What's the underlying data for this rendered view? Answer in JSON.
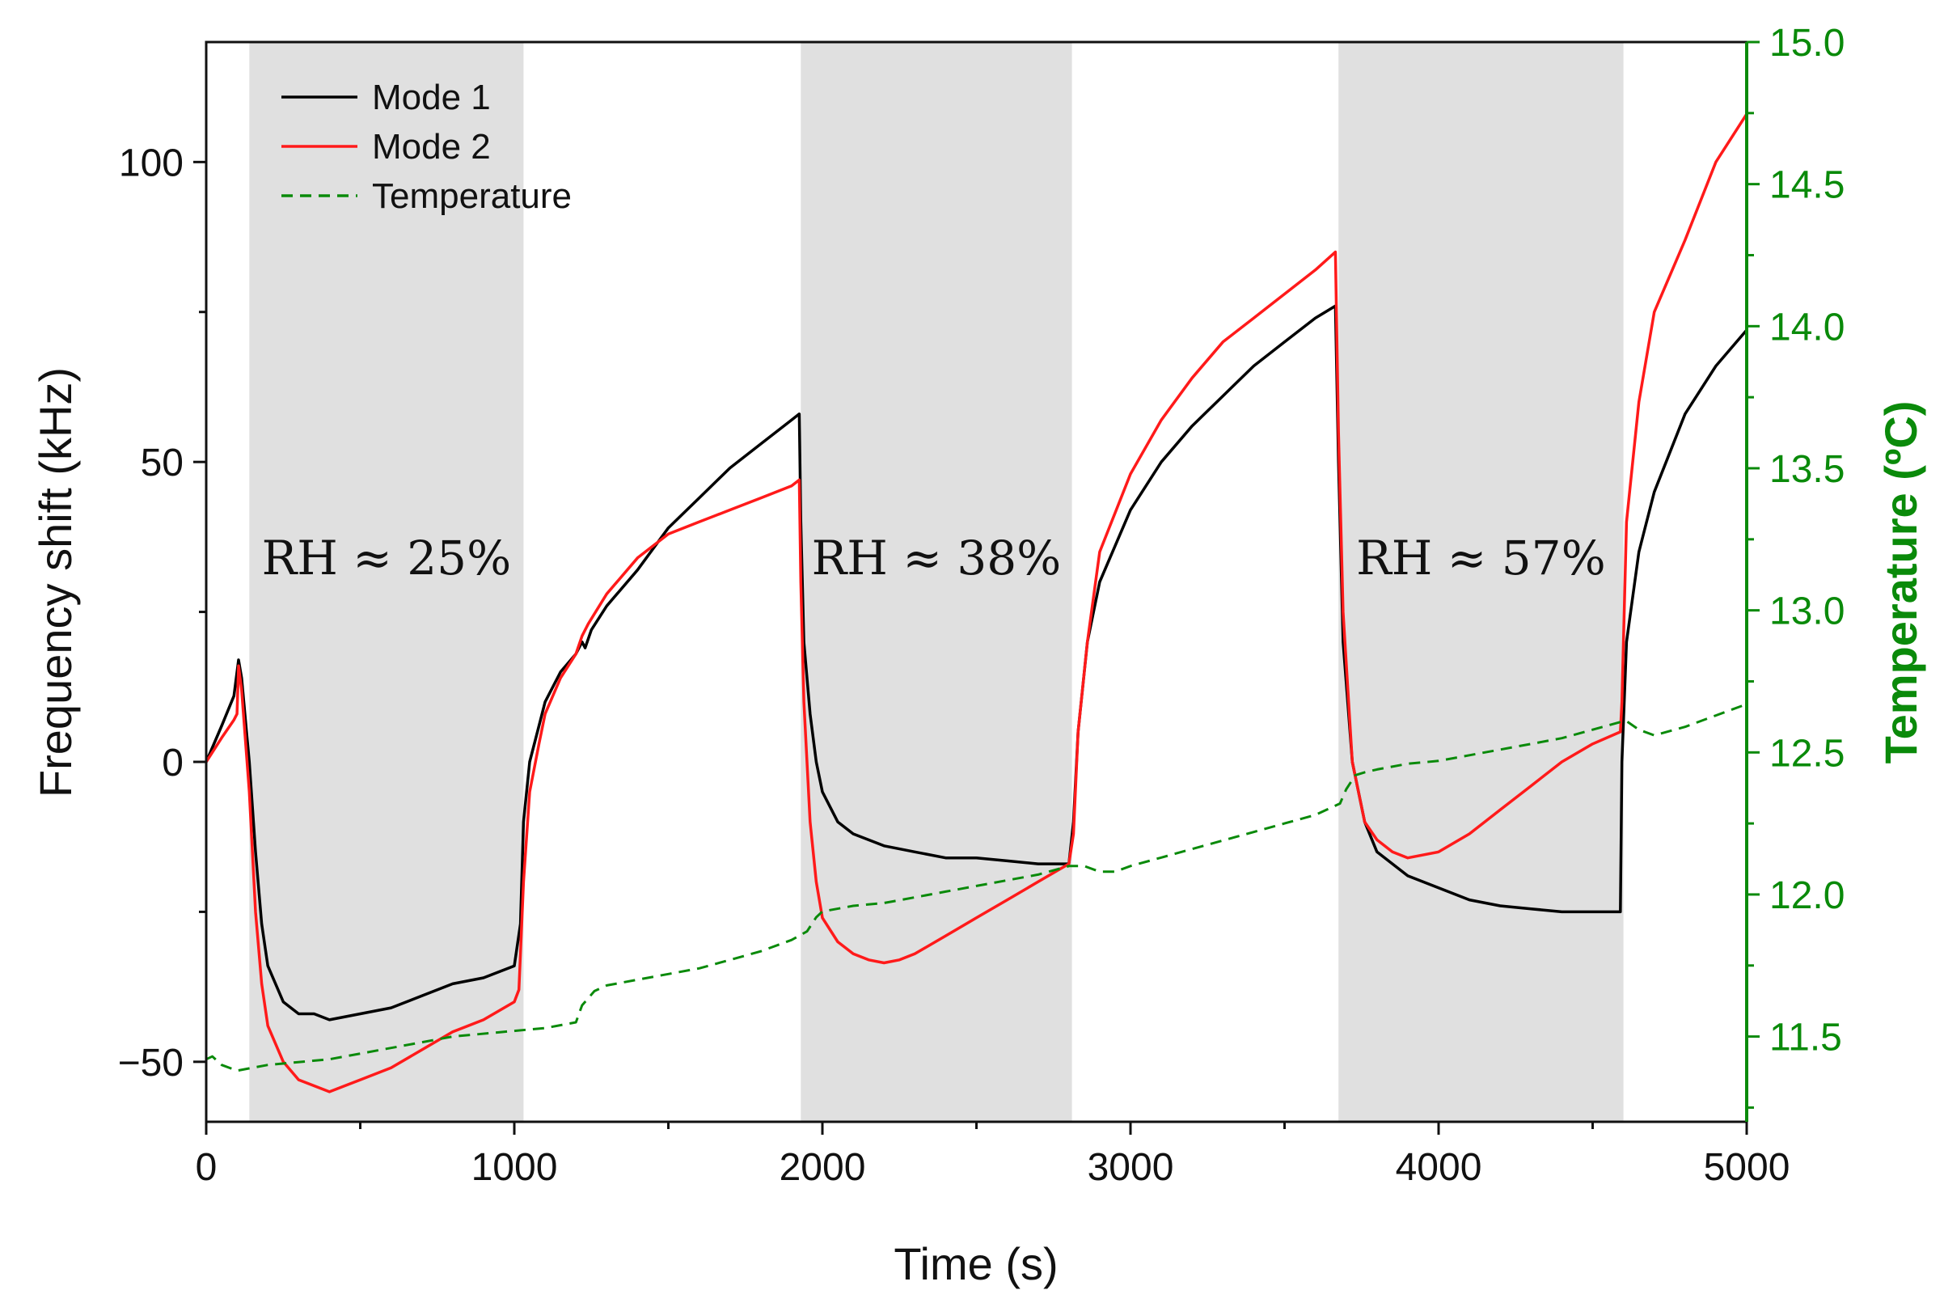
{
  "chart_data": {
    "type": "line",
    "title": "",
    "xlabel": "Time (s)",
    "ylabel": "Frequency shift (kHz)",
    "y2label": "Temperature (ºC)",
    "xlim": [
      0,
      5000
    ],
    "ylim": [
      -60,
      120
    ],
    "y2lim": [
      11.2,
      15.0
    ],
    "xticks": [
      0,
      1000,
      2000,
      3000,
      4000,
      5000
    ],
    "xtick_labels": [
      "0",
      "1000",
      "2000",
      "3000",
      "4000",
      "5000"
    ],
    "yticks": [
      -50,
      0,
      50,
      100
    ],
    "ytick_labels": [
      "−50",
      "0",
      "50",
      "100"
    ],
    "y2ticks": [
      11.5,
      12.0,
      12.5,
      13.0,
      13.5,
      14.0,
      14.5,
      15.0
    ],
    "y2tick_labels": [
      "11.5",
      "12.0",
      "12.5",
      "13.0",
      "13.5",
      "14.0",
      "14.5",
      "15.0"
    ],
    "shaded_regions": [
      {
        "x0": 140,
        "x1": 1030,
        "label": "RH ≈ 25%"
      },
      {
        "x0": 1930,
        "x1": 2810,
        "label": "RH ≈ 38%"
      },
      {
        "x0": 3675,
        "x1": 4600,
        "label": "RH ≈ 57%"
      }
    ],
    "legend": {
      "position": "top-left",
      "entries": [
        {
          "name": "Mode 1",
          "color": "#000000",
          "style": "solid"
        },
        {
          "name": "Mode 2",
          "color": "#ff1a1a",
          "style": "solid"
        },
        {
          "name": "Temperature",
          "color": "#0a8a0a",
          "style": "dashed"
        }
      ]
    },
    "series": [
      {
        "name": "Mode 1",
        "axis": "left",
        "color": "#000000",
        "x": [
          0,
          50,
          90,
          105,
          115,
          140,
          160,
          180,
          200,
          250,
          300,
          350,
          400,
          500,
          600,
          700,
          800,
          900,
          1000,
          1020,
          1030,
          1050,
          1080,
          1100,
          1150,
          1200,
          1220,
          1230,
          1250,
          1300,
          1400,
          1500,
          1600,
          1700,
          1800,
          1900,
          1925,
          1930,
          1940,
          1960,
          1980,
          2000,
          2050,
          2100,
          2200,
          2300,
          2400,
          2500,
          2600,
          2700,
          2800,
          2815,
          2830,
          2860,
          2900,
          3000,
          3100,
          3200,
          3300,
          3400,
          3500,
          3600,
          3665,
          3675,
          3690,
          3720,
          3760,
          3800,
          3900,
          4000,
          4100,
          4200,
          4300,
          4400,
          4500,
          4590,
          4595,
          4610,
          4650,
          4700,
          4800,
          4900,
          5000
        ],
        "y": [
          0,
          6,
          11,
          17,
          14,
          0,
          -15,
          -27,
          -34,
          -40,
          -42,
          -42,
          -43,
          -42,
          -41,
          -39,
          -37,
          -36,
          -34,
          -27,
          -10,
          0,
          6,
          10,
          15,
          18,
          20,
          19,
          22,
          26,
          32,
          39,
          44,
          49,
          53,
          57,
          58,
          40,
          20,
          8,
          0,
          -5,
          -10,
          -12,
          -14,
          -15,
          -16,
          -16,
          -16.5,
          -17,
          -17,
          -10,
          5,
          20,
          30,
          42,
          50,
          56,
          61,
          66,
          70,
          74,
          76,
          50,
          20,
          0,
          -10,
          -15,
          -19,
          -21,
          -23,
          -24,
          -24.5,
          -25,
          -25,
          -25,
          0,
          20,
          35,
          45,
          58,
          66,
          72
        ]
      },
      {
        "name": "Mode 2",
        "axis": "left",
        "color": "#ff1a1a",
        "x": [
          0,
          50,
          90,
          100,
          105,
          115,
          140,
          160,
          180,
          200,
          250,
          300,
          350,
          400,
          450,
          500,
          600,
          700,
          800,
          900,
          1000,
          1015,
          1030,
          1050,
          1080,
          1100,
          1150,
          1200,
          1220,
          1240,
          1300,
          1400,
          1500,
          1600,
          1700,
          1800,
          1900,
          1925,
          1930,
          1940,
          1960,
          1980,
          2000,
          2050,
          2100,
          2150,
          2200,
          2250,
          2300,
          2400,
          2500,
          2600,
          2700,
          2800,
          2815,
          2830,
          2860,
          2900,
          3000,
          3100,
          3200,
          3300,
          3400,
          3500,
          3600,
          3665,
          3675,
          3690,
          3720,
          3760,
          3800,
          3850,
          3900,
          4000,
          4100,
          4200,
          4300,
          4400,
          4500,
          4590,
          4595,
          4610,
          4650,
          4700,
          4800,
          4900,
          5000
        ],
        "y": [
          0,
          4,
          7,
          8,
          16,
          12,
          -5,
          -25,
          -37,
          -44,
          -50,
          -53,
          -54,
          -55,
          -54,
          -53,
          -51,
          -48,
          -45,
          -43,
          -40,
          -38,
          -20,
          -5,
          3,
          8,
          14,
          18,
          21,
          23,
          28,
          34,
          38,
          40,
          42,
          44,
          46,
          47,
          30,
          10,
          -10,
          -20,
          -26,
          -30,
          -32,
          -33,
          -33.5,
          -33,
          -32,
          -29,
          -26,
          -23,
          -20,
          -17,
          -12,
          5,
          20,
          35,
          48,
          57,
          64,
          70,
          74,
          78,
          82,
          85,
          55,
          25,
          0,
          -10,
          -13,
          -15,
          -16,
          -15,
          -12,
          -8,
          -4,
          0,
          3,
          5,
          10,
          40,
          60,
          75,
          87,
          100,
          108
        ]
      },
      {
        "name": "Temperature",
        "axis": "right",
        "color": "#0a8a0a",
        "style": "dashed",
        "x": [
          0,
          20,
          50,
          100,
          200,
          400,
          600,
          800,
          1000,
          1100,
          1200,
          1220,
          1260,
          1300,
          1400,
          1500,
          1600,
          1700,
          1800,
          1900,
          1950,
          1980,
          2000,
          2100,
          2200,
          2300,
          2400,
          2500,
          2600,
          2700,
          2800,
          2850,
          2900,
          2950,
          3000,
          3100,
          3200,
          3300,
          3400,
          3500,
          3600,
          3680,
          3700,
          3730,
          3760,
          3800,
          3900,
          4000,
          4100,
          4200,
          4300,
          4400,
          4500,
          4600,
          4610,
          4650,
          4700,
          4800,
          4900,
          5000
        ],
        "y": [
          11.42,
          11.43,
          11.4,
          11.38,
          11.4,
          11.42,
          11.46,
          11.5,
          11.52,
          11.53,
          11.55,
          11.61,
          11.66,
          11.68,
          11.7,
          11.72,
          11.74,
          11.77,
          11.8,
          11.84,
          11.87,
          11.92,
          11.94,
          11.96,
          11.97,
          11.99,
          12.01,
          12.03,
          12.05,
          12.07,
          12.1,
          12.1,
          12.08,
          12.08,
          12.1,
          12.13,
          12.16,
          12.19,
          12.22,
          12.25,
          12.28,
          12.32,
          12.37,
          12.42,
          12.43,
          12.44,
          12.46,
          12.47,
          12.49,
          12.51,
          12.53,
          12.55,
          12.58,
          12.61,
          12.61,
          12.58,
          12.56,
          12.59,
          12.63,
          12.67
        ]
      }
    ]
  }
}
